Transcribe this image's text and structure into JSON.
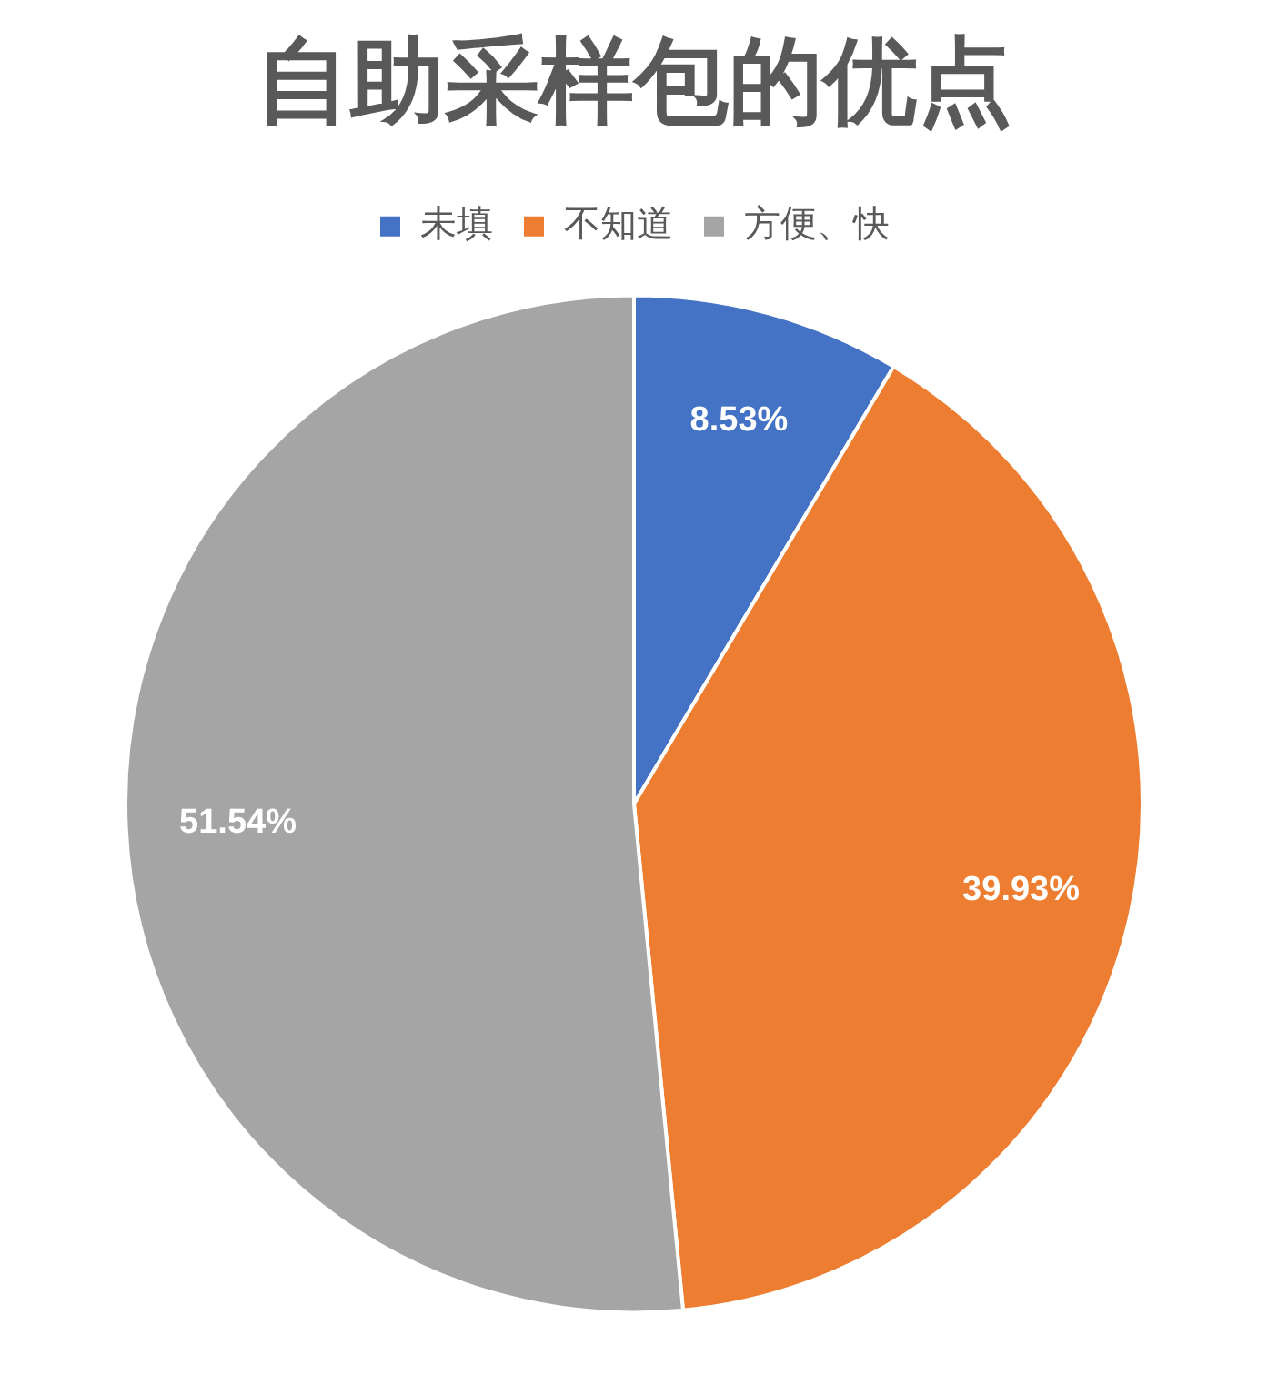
{
  "chart_data": {
    "type": "pie",
    "title": "自助采样包的优点",
    "categories": [
      "未填",
      "不知道",
      "方便、快"
    ],
    "values": [
      8.53,
      39.93,
      51.54
    ],
    "colors": [
      "#4472c4",
      "#ed7d31",
      "#a5a5a5"
    ],
    "value_labels": [
      "8.53%",
      "39.93%",
      "51.54%"
    ],
    "legend": "top"
  }
}
